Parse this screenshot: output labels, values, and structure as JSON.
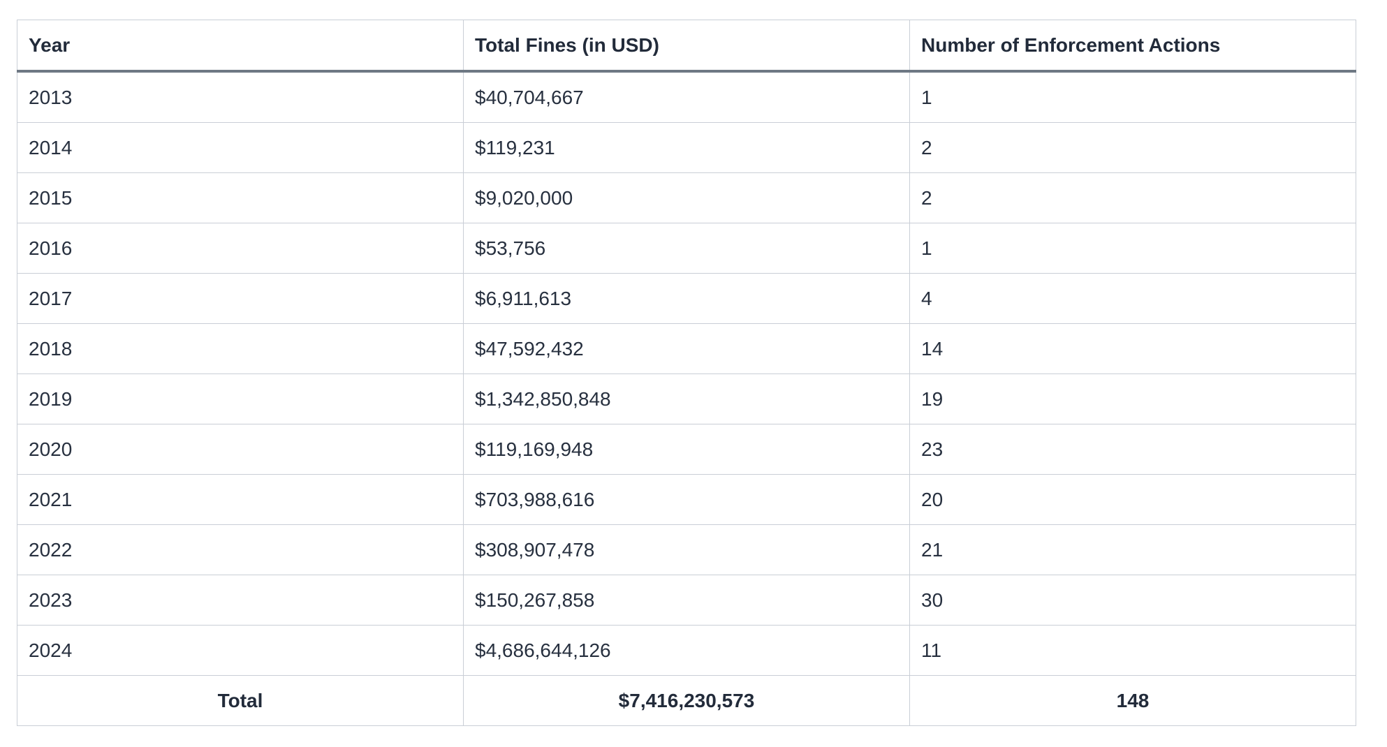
{
  "colors": {
    "text": "#27303f",
    "header_text": "#222b3a",
    "header_separator": "#6e7884",
    "grid_line": "#c9ced6",
    "outer_border": "#aab1bb",
    "background": "#ffffff"
  },
  "table": {
    "columns": [
      "Year",
      "Total Fines (in USD)",
      "Number of Enforcement Actions"
    ],
    "rows": [
      [
        "2013",
        "$40,704,667",
        "1"
      ],
      [
        "2014",
        "$119,231",
        "2"
      ],
      [
        "2015",
        "$9,020,000",
        "2"
      ],
      [
        "2016",
        "$53,756",
        "1"
      ],
      [
        "2017",
        "$6,911,613",
        "4"
      ],
      [
        "2018",
        "$47,592,432",
        "14"
      ],
      [
        "2019",
        "$1,342,850,848",
        "19"
      ],
      [
        "2020",
        "$119,169,948",
        "23"
      ],
      [
        "2021",
        "$703,988,616",
        "20"
      ],
      [
        "2022",
        "$308,907,478",
        "21"
      ],
      [
        "2023",
        "$150,267,858",
        "30"
      ],
      [
        "2024",
        "$4,686,644,126",
        "11"
      ]
    ],
    "total_row": [
      "Total",
      "$7,416,230,573",
      "148"
    ]
  },
  "chart_data": {
    "type": "table",
    "title": "",
    "columns": [
      "Year",
      "Total Fines (in USD)",
      "Number of Enforcement Actions"
    ],
    "categories": [
      "2013",
      "2014",
      "2015",
      "2016",
      "2017",
      "2018",
      "2019",
      "2020",
      "2021",
      "2022",
      "2023",
      "2024"
    ],
    "series": [
      {
        "name": "Total Fines (in USD)",
        "values": [
          40704667,
          119231,
          9020000,
          53756,
          6911613,
          47592432,
          1342850848,
          119169948,
          703988616,
          308907478,
          150267858,
          4686644126
        ]
      },
      {
        "name": "Number of Enforcement Actions",
        "values": [
          1,
          2,
          2,
          1,
          4,
          14,
          19,
          23,
          20,
          21,
          30,
          11
        ]
      }
    ],
    "totals": {
      "label": "Total",
      "total_fines_usd": 7416230573,
      "total_fines_display": "$7,416,230,573",
      "number_of_enforcement_actions": 148
    },
    "layout_hints": {
      "grid": true,
      "header_bold": true,
      "total_row_bold_centered": true,
      "body_alignment": "left"
    }
  }
}
